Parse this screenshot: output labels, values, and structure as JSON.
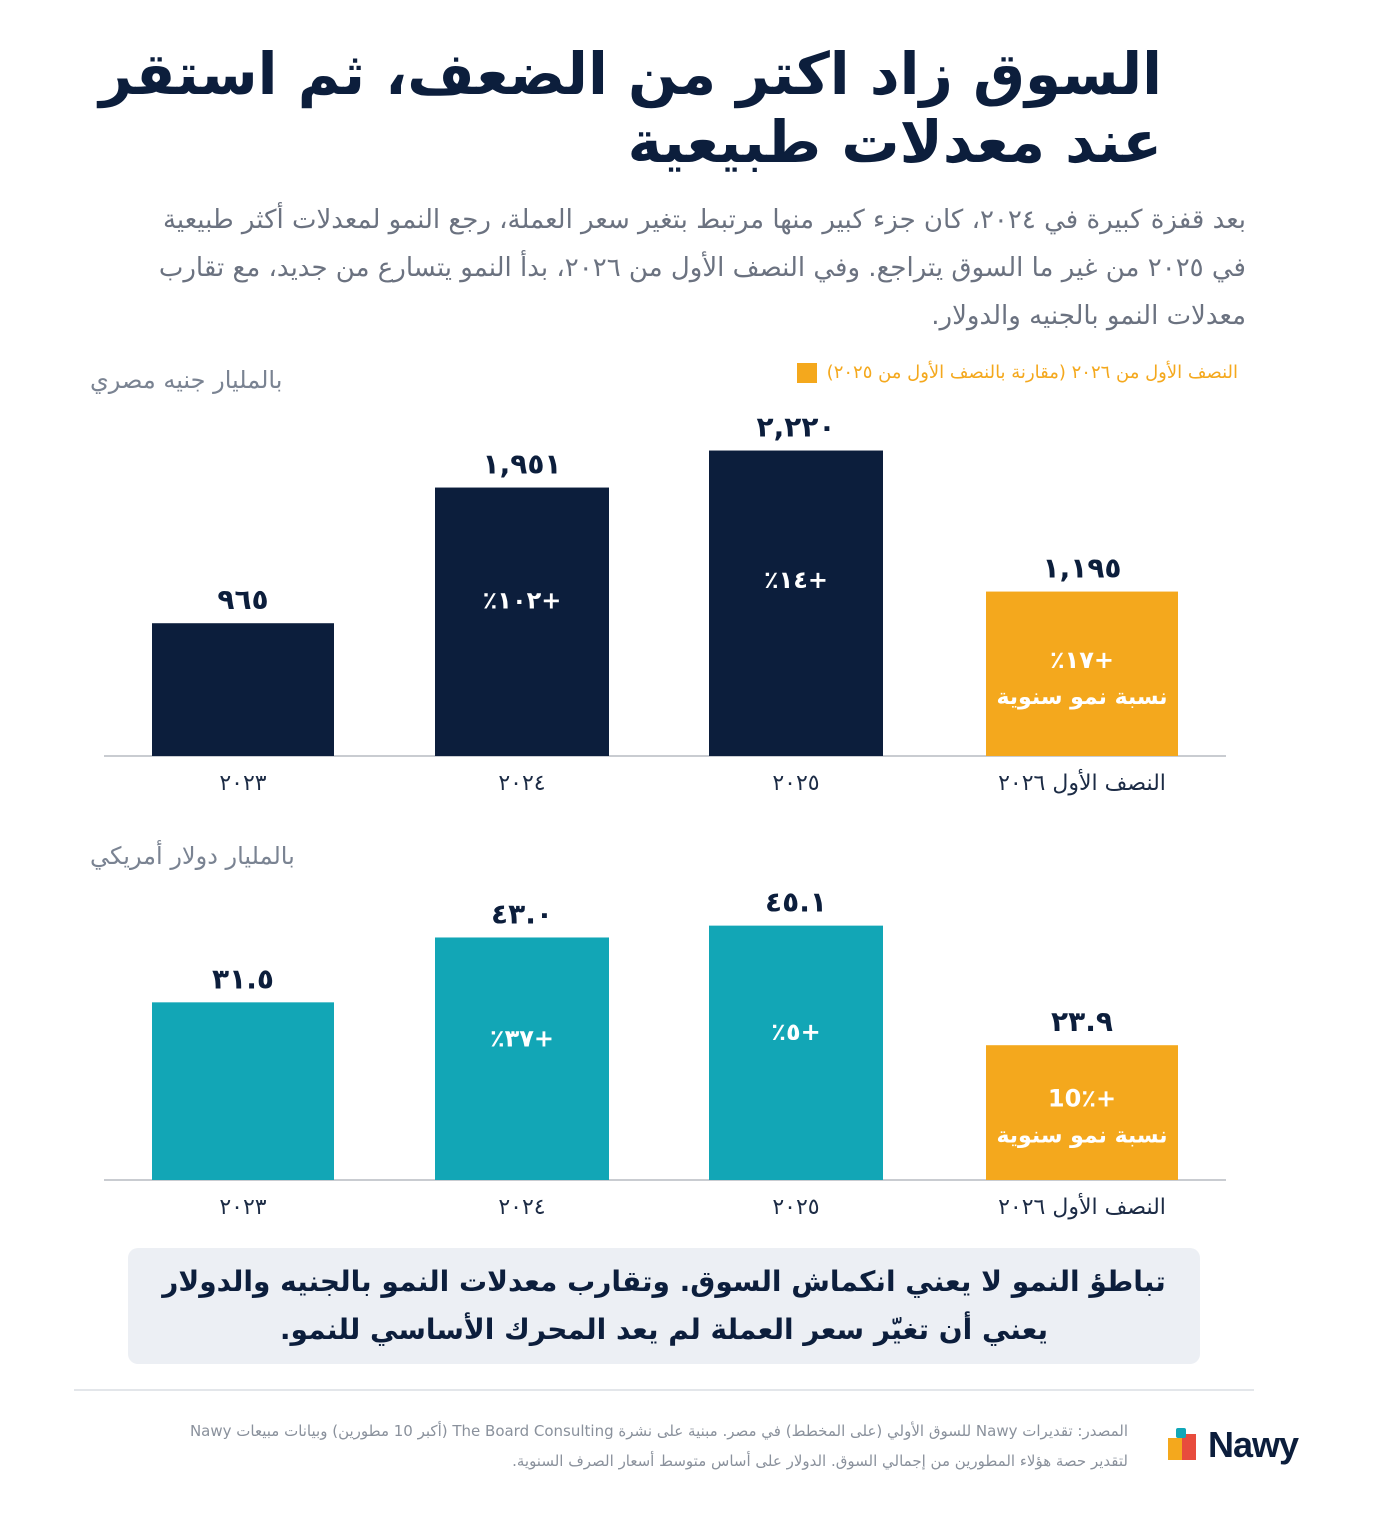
{
  "header": {
    "title": "السوق زاد اكتر من الضعف، ثم استقر عند معدلات طبيعية",
    "subtitle": "بعد قفزة كبيرة في ٢٠٢٤، كان جزء كبير منها مرتبط بتغير سعر العملة، رجع النمو لمعدلات أكثر طبيعية في ٢٠٢٥ من غير ما السوق يتراجع. وفي النصف الأول من ٢٠٢٦، بدأ النمو يتسارع من جديد، مع تقارب معدلات النمو بالجنيه والدولار."
  },
  "legend": {
    "label": "النصف الأول من ٢٠٢٦ (مقارنة بالنصف الأول من ٢٠٢٥)",
    "color": "#f4a81d"
  },
  "chart_data": [
    {
      "type": "bar",
      "unit_label": "بالمليار جنيه مصري",
      "categories": [
        "٢٠٢٣",
        "٢٠٢٤",
        "٢٠٢٥",
        "النصف الأول ٢٠٢٦"
      ],
      "values": [
        965,
        1951,
        2220,
        1195
      ],
      "value_labels": [
        "٩٦٥",
        "١,٩٥١",
        "٢,٢٢٠",
        "١,١٩٥"
      ],
      "growth_labels": [
        "",
        "+١٠٢٪",
        "+١٤٪",
        "+١٧٪"
      ],
      "growth_sublabels": [
        "",
        "",
        "",
        "نسبة نمو سنوية"
      ],
      "colors": [
        "#0c1e3c",
        "#0c1e3c",
        "#0c1e3c",
        "#f4a81d"
      ],
      "ylim": [
        0,
        2500
      ]
    },
    {
      "type": "bar",
      "unit_label": "بالمليار دولار أمريكي",
      "categories": [
        "٢٠٢٣",
        "٢٠٢٤",
        "٢٠٢٥",
        "النصف الأول ٢٠٢٦"
      ],
      "values": [
        31.5,
        43.0,
        45.1,
        23.9
      ],
      "value_labels": [
        "٣١.٥",
        "٤٣.٠",
        "٤٥.١",
        "٢٣.٩"
      ],
      "growth_labels": [
        "",
        "+٣٧٪",
        "+٥٪",
        "+10٪"
      ],
      "growth_sublabels": [
        "",
        "",
        "",
        "نسبة نمو سنوية"
      ],
      "colors": [
        "#12a6b6",
        "#12a6b6",
        "#12a6b6",
        "#f4a81d"
      ],
      "ylim": [
        0,
        50
      ]
    }
  ],
  "callout": {
    "line1": "تباطؤ النمو لا يعني انكماش السوق. وتقارب معدلات النمو بالجنيه والدولار",
    "line2": "يعني أن تغيّر سعر العملة لم يعد المحرك الأساسي للنمو."
  },
  "source": {
    "line1": "المصدر: تقديرات Nawy للسوق الأولي (على المخطط) في مصر. مبنية على نشرة The Board Consulting (أكبر 10 مطورين) وبيانات مبيعات Nawy",
    "line2": "لتقدير حصة هؤلاء المطورين من إجمالي السوق. الدولار على أساس متوسط أسعار الصرف السنوية."
  },
  "logo": {
    "text": "Nawy"
  }
}
